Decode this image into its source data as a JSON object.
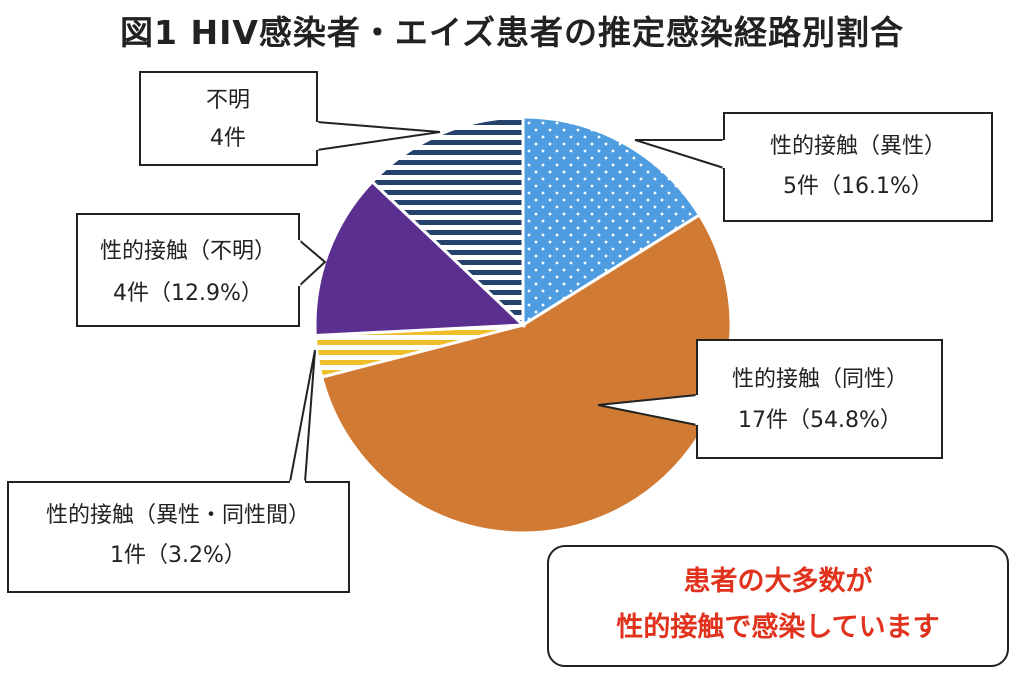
{
  "chart_data": {
    "type": "pie",
    "title": "図1 HIV感染者・エイズ患者の推定感染経路別割合",
    "slices": [
      {
        "label": "性的接触（異性）",
        "count_text": "5件（16.1%）",
        "count": 5,
        "percent": 16.1,
        "color": "#4e9de0",
        "pattern": "dots"
      },
      {
        "label": "性的接触（同性）",
        "count_text": "17件（54.8%）",
        "count": 17,
        "percent": 54.8,
        "color": "#d07a33",
        "pattern": "solid"
      },
      {
        "label": "性的接触（異性・同性間）",
        "count_text": "1件（3.2%）",
        "count": 1,
        "percent": 3.2,
        "color": "#eebf2b",
        "pattern": "stripes"
      },
      {
        "label": "性的接触（不明）",
        "count_text": "4件（12.9%）",
        "count": 4,
        "percent": 12.9,
        "color": "#5b2f8f",
        "pattern": "solid"
      },
      {
        "label": "不明",
        "count_text": "4件",
        "count": 4,
        "percent": 12.9,
        "color": "#24426b",
        "pattern": "stripes"
      }
    ]
  },
  "note": {
    "line1": "患者の大多数が",
    "line2": "性的接触で感染しています"
  }
}
